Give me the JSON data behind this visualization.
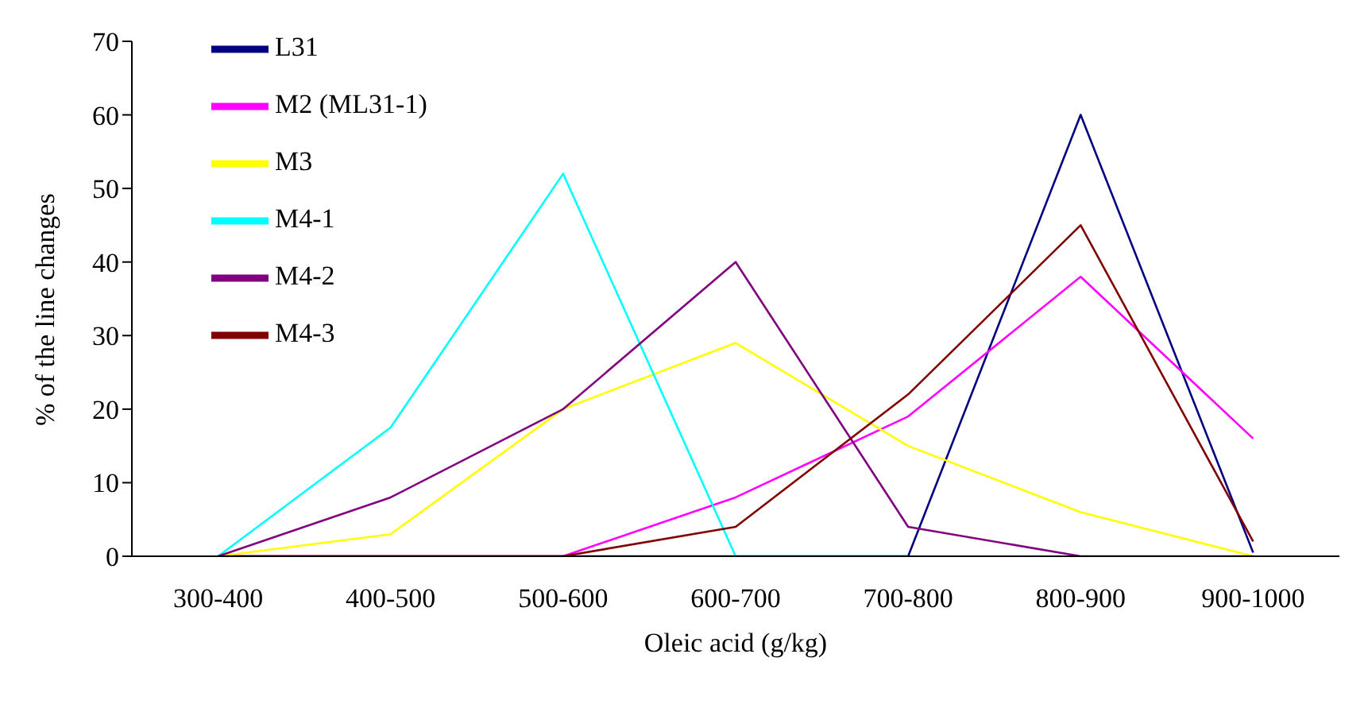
{
  "chart_data": {
    "type": "line",
    "xlabel": "Oleic acid (g/kg)",
    "ylabel": "% of the line changes",
    "categories": [
      "300-400",
      "400-500",
      "500-600",
      "600-700",
      "700-800",
      "800-900",
      "900-1000"
    ],
    "series": [
      {
        "name": "L31",
        "color": "#000080",
        "values": [
          0,
          0,
          0,
          0,
          0,
          60,
          0.5
        ]
      },
      {
        "name": "M2 (ML31-1)",
        "color": "#ff00ff",
        "values": [
          0,
          0,
          0,
          8,
          19,
          38,
          16
        ]
      },
      {
        "name": "M3",
        "color": "#ffff00",
        "values": [
          0,
          3,
          20,
          29,
          15,
          6,
          0
        ]
      },
      {
        "name": "M4-1",
        "color": "#00ffff",
        "values": [
          0,
          17.5,
          52,
          0,
          0,
          null,
          null
        ]
      },
      {
        "name": "M4-2",
        "color": "#800080",
        "values": [
          0,
          8,
          20,
          40,
          4,
          0,
          0
        ]
      },
      {
        "name": "M4-3",
        "color": "#800000",
        "values": [
          0,
          0,
          0,
          4,
          22,
          45,
          2
        ]
      }
    ],
    "ylim": [
      0,
      70
    ],
    "yticks": [
      0,
      10,
      20,
      30,
      40,
      50,
      60,
      70
    ],
    "grid": false,
    "legend": "top left",
    "marker": "none",
    "line_style": "solid"
  }
}
